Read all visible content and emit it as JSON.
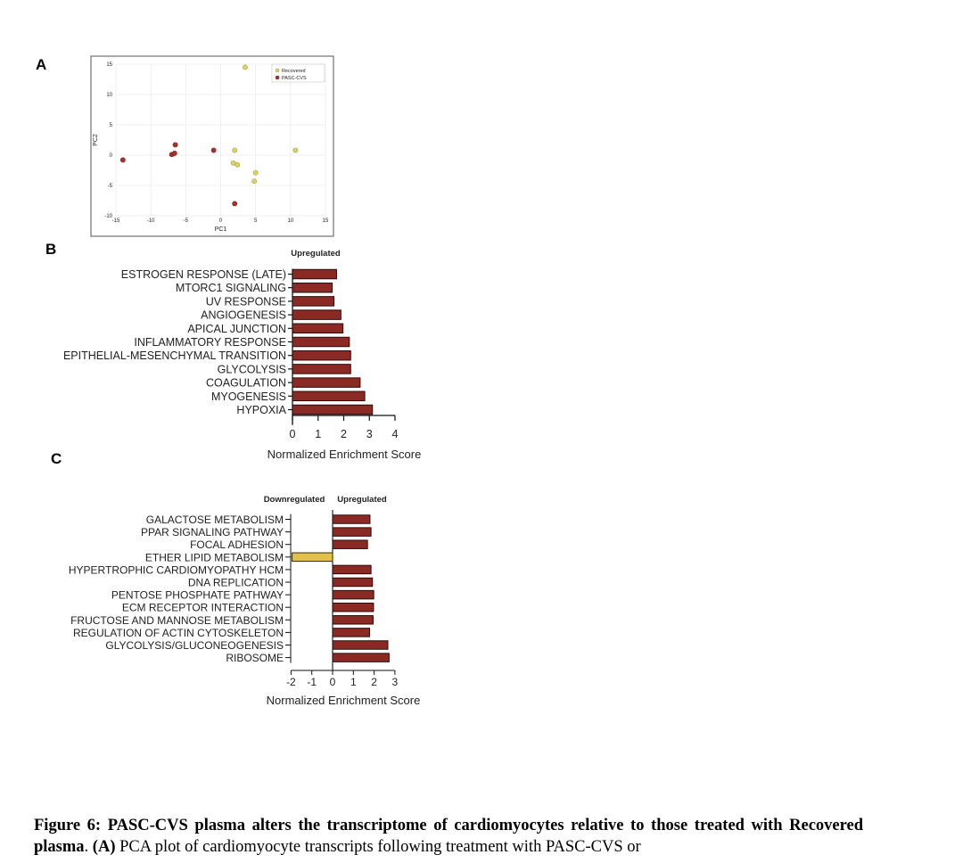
{
  "panel_labels": {
    "a": "A",
    "b": "B",
    "c": "C"
  },
  "colors": {
    "recovered": "#d9d36a",
    "pasc": "#a8322a",
    "bar_up": "#8b2a24",
    "bar_down": "#e2c04a",
    "frame": "#707070"
  },
  "chart_data": [
    {
      "type": "scatter",
      "title": "",
      "xlabel": "PC1",
      "ylabel": "PC2",
      "xlim": [
        -15,
        15
      ],
      "ylim": [
        -10,
        15
      ],
      "xticks": [
        -15,
        -10,
        -5,
        0,
        5,
        10,
        15
      ],
      "yticks": [
        15,
        10,
        5,
        0,
        -5,
        -10
      ],
      "grid": true,
      "legend_position": "top-right",
      "series": [
        {
          "name": "Recovered",
          "points": [
            [
              3.5,
              14.5
            ],
            [
              2.0,
              0.8
            ],
            [
              10.7,
              0.8
            ],
            [
              1.8,
              -1.3
            ],
            [
              2.4,
              -1.6
            ],
            [
              5.0,
              -2.9
            ],
            [
              4.8,
              -4.3
            ]
          ]
        },
        {
          "name": "PASC-CVS",
          "points": [
            [
              -14.0,
              -0.8
            ],
            [
              -7.0,
              0.1
            ],
            [
              -6.6,
              0.3
            ],
            [
              -6.5,
              1.7
            ],
            [
              -1.0,
              0.8
            ],
            [
              2.0,
              -8.0
            ]
          ]
        }
      ]
    },
    {
      "type": "bar",
      "orientation": "horizontal",
      "title": "Upregulated",
      "xlabel": "Normalized Enrichment Score",
      "xlim": [
        0,
        4
      ],
      "xticks": [
        0,
        1,
        2,
        3,
        4
      ],
      "categories": [
        "ESTROGEN RESPONSE (LATE)",
        "MTORC1 SIGNALING",
        "UV RESPONSE",
        "ANGIOGENESIS",
        "APICAL JUNCTION",
        "INFLAMMATORY RESPONSE",
        "EPITHELIAL-MESENCHYMAL TRANSITION",
        "GLYCOLYSIS",
        "COAGULATION",
        "MYOGENESIS",
        "HYPOXIA"
      ],
      "values": [
        1.72,
        1.55,
        1.62,
        1.89,
        1.97,
        2.22,
        2.27,
        2.27,
        2.64,
        2.82,
        3.12
      ]
    },
    {
      "type": "bar",
      "orientation": "horizontal",
      "title_left": "Downregulated",
      "title_right": "Upregulated",
      "xlabel": "Normalized Enrichment Score",
      "xlim": [
        -2,
        3
      ],
      "xticks": [
        -2,
        -1,
        0,
        1,
        2,
        3
      ],
      "categories": [
        "GALACTOSE METABOLISM",
        "PPAR SIGNALING PATHWAY",
        "FOCAL ADHESION",
        "ETHER LIPID METABOLISM",
        "HYPERTROPHIC CARDIOMYOPATHY HCM",
        "DNA REPLICATION",
        "PENTOSE PHOSPHATE PATHWAY",
        "ECM RECEPTOR INTERACTION",
        "FRUCTOSE AND MANNOSE METABOLISM",
        "REGULATION OF ACTIN CYTOSKELETON",
        "GLYCOLYSIS/GLUCONEOGENESIS",
        "RIBOSOME"
      ],
      "values": [
        1.8,
        1.85,
        1.68,
        -1.95,
        1.85,
        1.92,
        1.98,
        1.97,
        1.95,
        1.78,
        2.66,
        2.72
      ]
    }
  ],
  "caption": {
    "bold": "Figure 6: PASC-CVS plasma alters the transcriptome of cardiomyocytes relative to those treated with Recovered plasma",
    "sep": ". ",
    "label_a": "(A)",
    "text": " PCA plot of cardiomyocyte transcripts following treatment with PASC-CVS or"
  }
}
